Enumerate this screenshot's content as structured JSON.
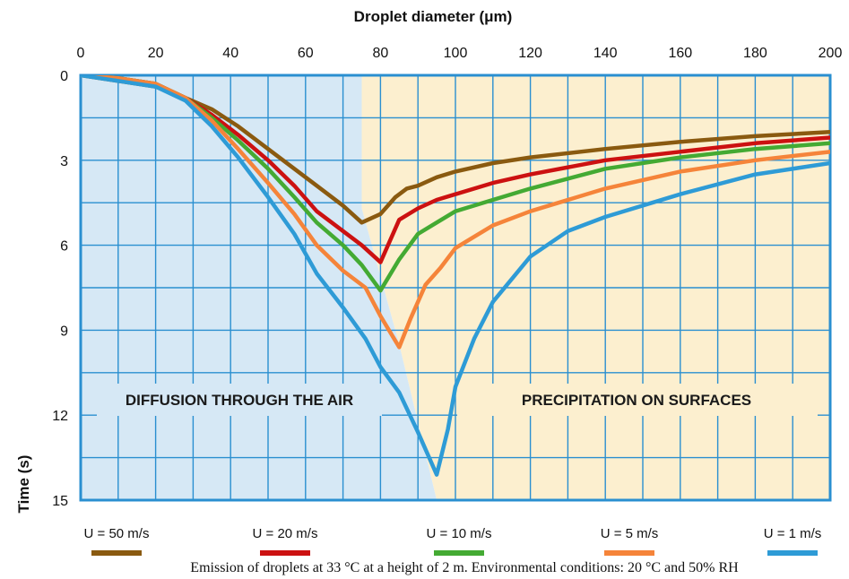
{
  "chart_data": {
    "type": "line",
    "xlabel": "Droplet diameter (μm)",
    "ylabel": "Time (s)",
    "xlim": [
      0,
      200
    ],
    "ylim": [
      0,
      15
    ],
    "y_inverted": true,
    "x_axis_position": "top",
    "x_ticks": [
      0,
      20,
      40,
      60,
      80,
      100,
      120,
      140,
      160,
      180,
      200
    ],
    "y_ticks": [
      0,
      3,
      6,
      9,
      12,
      15
    ],
    "grid": true,
    "regions": [
      {
        "label": "DIFFUSION THROUGH THE AIR",
        "color": "#d6e8f5"
      },
      {
        "label": "PRECIPITATION ON SURFACES",
        "color": "#fcefcf"
      }
    ],
    "legend_position": "bottom",
    "caption": "Emission of droplets at 33 °C at a height of 2 m. Environmental conditions: 20 °C and 50% RH",
    "series": [
      {
        "name": "U = 50 m/s",
        "color": "#8a5a10",
        "x": [
          0,
          10,
          20,
          28,
          35,
          42,
          50,
          57,
          63,
          70,
          75,
          80,
          84,
          87,
          90,
          95,
          100,
          110,
          120,
          140,
          160,
          180,
          200
        ],
        "y": [
          0,
          0.2,
          0.4,
          0.8,
          1.2,
          1.8,
          2.6,
          3.3,
          3.9,
          4.6,
          5.2,
          4.9,
          4.3,
          4.0,
          3.9,
          3.6,
          3.4,
          3.1,
          2.9,
          2.6,
          2.35,
          2.15,
          2.0
        ]
      },
      {
        "name": "U = 20 m/s",
        "color": "#cc1111",
        "x": [
          0,
          10,
          20,
          28,
          35,
          42,
          50,
          57,
          63,
          70,
          75,
          80,
          85,
          90,
          95,
          100,
          110,
          120,
          140,
          160,
          180,
          200
        ],
        "y": [
          0,
          0.1,
          0.3,
          0.8,
          1.4,
          2.1,
          3.0,
          3.9,
          4.8,
          5.5,
          6.0,
          6.6,
          5.1,
          4.7,
          4.4,
          4.2,
          3.8,
          3.5,
          3.0,
          2.7,
          2.4,
          2.2
        ]
      },
      {
        "name": "U = 10 m/s",
        "color": "#44aa33",
        "x": [
          0,
          10,
          20,
          28,
          35,
          42,
          50,
          57,
          63,
          70,
          75,
          80,
          85,
          90,
          95,
          100,
          110,
          120,
          140,
          160,
          180,
          200
        ],
        "y": [
          0,
          0.1,
          0.3,
          0.8,
          1.5,
          2.3,
          3.3,
          4.3,
          5.2,
          6.0,
          6.7,
          7.6,
          6.5,
          5.6,
          5.2,
          4.8,
          4.4,
          4.0,
          3.3,
          2.9,
          2.6,
          2.4
        ]
      },
      {
        "name": "U = 5 m/s",
        "color": "#f5843a",
        "x": [
          0,
          10,
          20,
          28,
          35,
          42,
          50,
          57,
          63,
          70,
          76,
          80,
          85,
          88,
          92,
          96,
          100,
          110,
          120,
          140,
          160,
          180,
          200
        ],
        "y": [
          0,
          0.1,
          0.3,
          0.8,
          1.6,
          2.6,
          3.8,
          4.9,
          6.0,
          6.9,
          7.5,
          8.5,
          9.6,
          8.6,
          7.4,
          6.8,
          6.1,
          5.3,
          4.8,
          4.0,
          3.4,
          3.0,
          2.7
        ]
      },
      {
        "name": "U = 1 m/s",
        "color": "#2e9bd6",
        "x": [
          0,
          10,
          20,
          28,
          35,
          42,
          50,
          57,
          63,
          70,
          76,
          80,
          85,
          90,
          95,
          98,
          100,
          105,
          110,
          120,
          130,
          140,
          160,
          180,
          200
        ],
        "y": [
          0,
          0.2,
          0.4,
          0.9,
          1.8,
          2.9,
          4.3,
          5.6,
          7.0,
          8.2,
          9.3,
          10.3,
          11.2,
          12.6,
          14.1,
          12.5,
          11.0,
          9.3,
          8.0,
          6.4,
          5.5,
          5.0,
          4.2,
          3.5,
          3.1
        ]
      }
    ]
  }
}
